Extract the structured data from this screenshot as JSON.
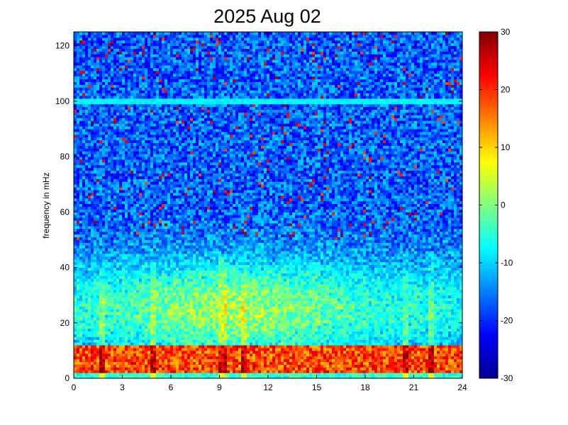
{
  "chart_data": {
    "type": "heatmap",
    "title": "2025 Aug 02",
    "xlabel": "",
    "ylabel": "frequency in mHz",
    "xlim": [
      0,
      24
    ],
    "ylim": [
      0,
      125
    ],
    "xticks": [
      "0",
      "3",
      "6",
      "9",
      "12",
      "15",
      "18",
      "21",
      "24"
    ],
    "yticks": [
      "0",
      "20",
      "40",
      "60",
      "80",
      "100",
      "120"
    ],
    "colorbar": {
      "range": [
        -30,
        30
      ],
      "ticks": [
        "30",
        "20",
        "10",
        "0",
        "-10",
        "-20",
        "-30"
      ],
      "colormap": "jet"
    },
    "grid": false,
    "features": {
      "constant_line_frequency_mHz": 100,
      "low_band_frequency_mHz": [
        2,
        12
      ],
      "low_band_level": 18,
      "mid_band_frequency_mHz": [
        15,
        45
      ],
      "mid_band_level": 2,
      "background_level": -17,
      "vertical_streak_hours": [
        1.8,
        4.9,
        9.2,
        10.5,
        20.5,
        22.1
      ]
    }
  }
}
